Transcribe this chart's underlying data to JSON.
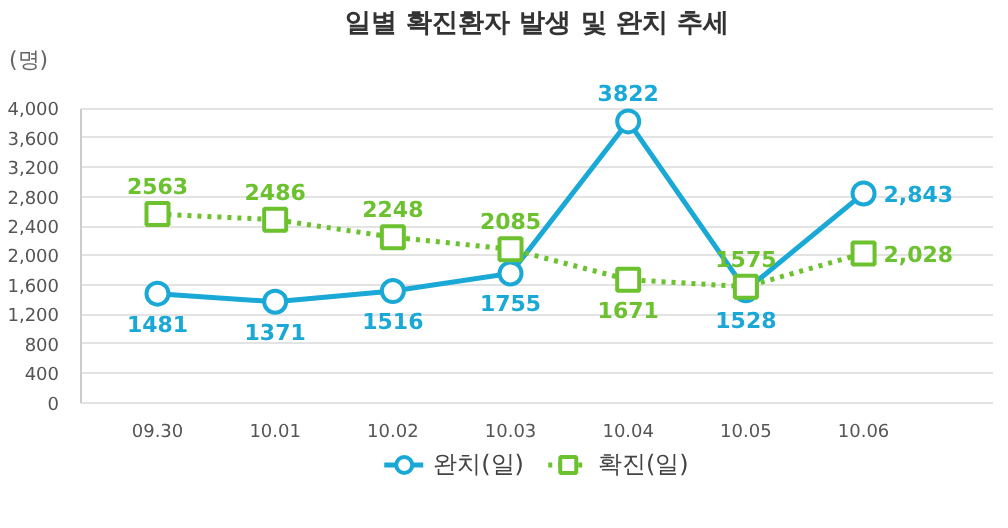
{
  "chart_data": {
    "type": "line",
    "title": "일별 확진환자 발생 및 완치 추세",
    "ylabel": "(명)",
    "categories": [
      "09.30",
      "10.01",
      "10.02",
      "10.03",
      "10.04",
      "10.05",
      "10.06"
    ],
    "series": [
      {
        "name": "완치(일)",
        "color": "#1aa9d6",
        "marker": "circle",
        "line_style": "solid",
        "values": [
          1481,
          1371,
          1516,
          1755,
          3822,
          1528,
          2843
        ],
        "value_labels": [
          "1481",
          "1371",
          "1516",
          "1755",
          "3822",
          "1528",
          "2,843"
        ]
      },
      {
        "name": "확진(일)",
        "color": "#6cc12e",
        "marker": "square",
        "line_style": "dotted",
        "values": [
          2563,
          2486,
          2248,
          2085,
          1671,
          1575,
          2028
        ],
        "value_labels": [
          "2563",
          "2486",
          "2248",
          "2085",
          "1671",
          "1575",
          "2,028"
        ]
      }
    ],
    "ylim": [
      0,
      4000
    ],
    "yticks": [
      {
        "value": 0,
        "label": "0"
      },
      {
        "value": 400,
        "label": "400"
      },
      {
        "value": 800,
        "label": "800"
      },
      {
        "value": 1200,
        "label": "1,200"
      },
      {
        "value": 1600,
        "label": "1,600"
      },
      {
        "value": 2000,
        "label": "2,000"
      },
      {
        "value": 2400,
        "label": "2,400"
      },
      {
        "value": 2800,
        "label": "2,800"
      },
      {
        "value": 3200,
        "label": "3,200"
      },
      {
        "value": 3600,
        "label": "3,600"
      },
      {
        "value": 4000,
        "label": "4,000"
      }
    ],
    "grid": "y",
    "legend": "bottom"
  }
}
